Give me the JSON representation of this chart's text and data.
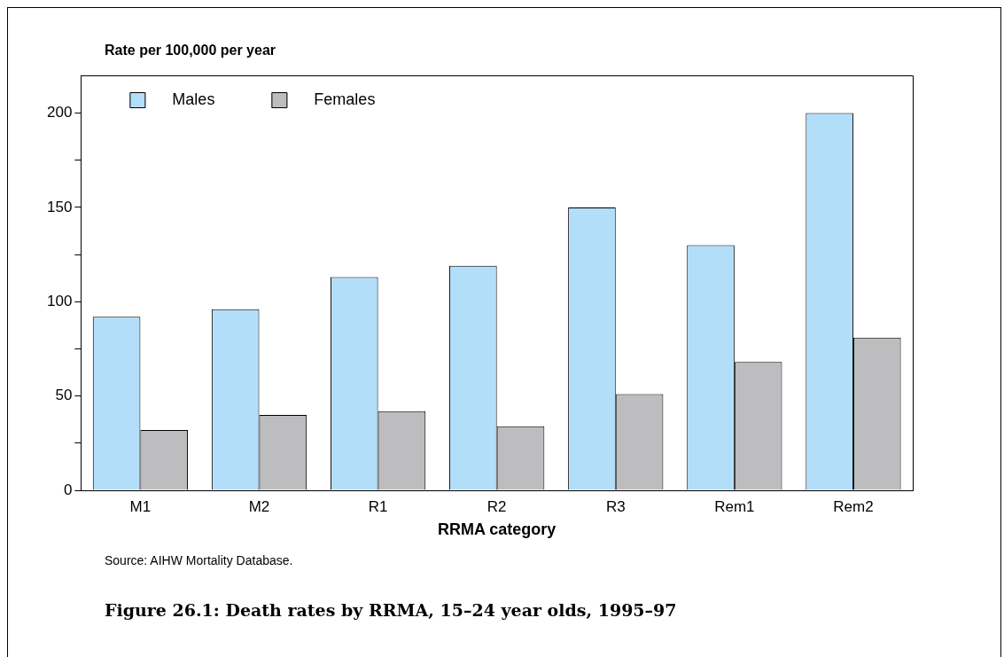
{
  "chart_data": {
    "type": "bar",
    "title": "Figure 26.1: Death rates by RRMA, 15–24 year olds, 1995–97",
    "xlabel": "RRMA category",
    "ylabel": "Rate per 100,000 per year",
    "categories": [
      "M1",
      "M2",
      "R1",
      "R2",
      "R3",
      "Rem1",
      "Rem2"
    ],
    "series": [
      {
        "name": "Males",
        "color": "#b3defa",
        "values": [
          92,
          96,
          113,
          119,
          150,
          130,
          200
        ]
      },
      {
        "name": "Females",
        "color": "#bdbdbf",
        "values": [
          32,
          40,
          42,
          34,
          51,
          68,
          81
        ]
      }
    ],
    "ylim": [
      0,
      220
    ],
    "yticks": [
      0,
      {
        "value": 25,
        "label": null
      },
      50,
      {
        "value": 75,
        "label": null
      },
      100,
      {
        "value": 125,
        "label": null
      },
      150,
      {
        "value": 175,
        "label": null
      },
      200
    ],
    "grid": false,
    "legend": "top left",
    "annotations": [
      "Source: AIHW Mortality Database."
    ]
  }
}
